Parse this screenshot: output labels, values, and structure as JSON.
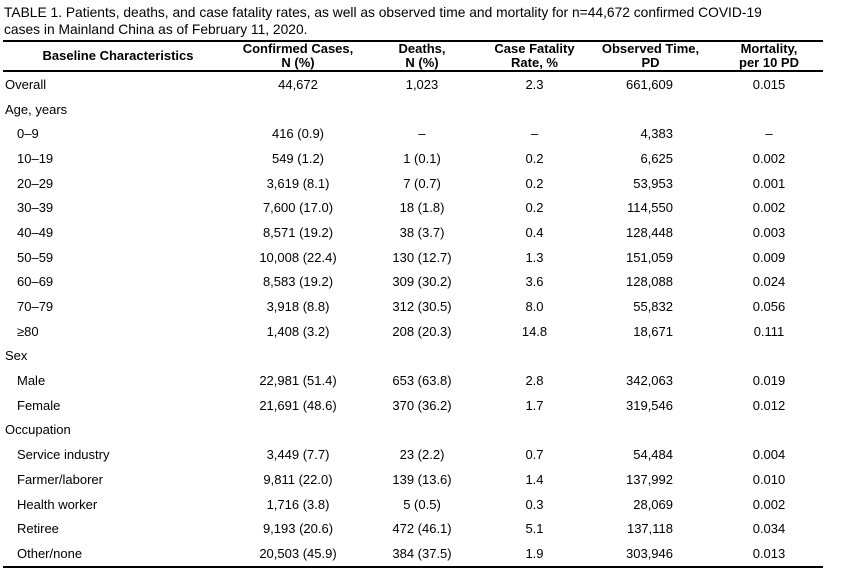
{
  "meta": {
    "text_color": "#000000",
    "background_color": "#ffffff",
    "rule_color": "#000000"
  },
  "title": {
    "line1": "TABLE 1. Patients, deaths, and case fatality rates, as well as observed time and mortality for n=44,672 confirmed COVID-19",
    "line2": "cases in Mainland China as of February 11, 2020."
  },
  "table": {
    "columns": [
      {
        "line1": "Baseline Characteristics",
        "line2": ""
      },
      {
        "line1": "Confirmed Cases,",
        "line2": "N (%)"
      },
      {
        "line1": "Deaths,",
        "line2": "N (%)"
      },
      {
        "line1": "Case Fatality",
        "line2": "Rate, %"
      },
      {
        "line1": "Observed Time,",
        "line2": "PD"
      },
      {
        "line1": "Mortality,",
        "line2": "per 10 PD"
      }
    ],
    "rows": [
      {
        "label": "Overall",
        "section": false,
        "indent": false,
        "confirmed": "44,672",
        "deaths": "1,023",
        "cfr": "2.3",
        "observed": "661,609",
        "mortality": "0.015"
      },
      {
        "label": "Age, years",
        "section": true,
        "indent": false
      },
      {
        "label": "0–9",
        "section": false,
        "indent": true,
        "confirmed": "416 (0.9)",
        "deaths": "–",
        "cfr": "–",
        "observed": "4,383",
        "mortality": "–"
      },
      {
        "label": "10–19",
        "section": false,
        "indent": true,
        "confirmed": "549 (1.2)",
        "deaths": "1 (0.1)",
        "cfr": "0.2",
        "observed": "6,625",
        "mortality": "0.002"
      },
      {
        "label": "20–29",
        "section": false,
        "indent": true,
        "confirmed": "3,619 (8.1)",
        "deaths": "7 (0.7)",
        "cfr": "0.2",
        "observed": "53,953",
        "mortality": "0.001"
      },
      {
        "label": "30–39",
        "section": false,
        "indent": true,
        "confirmed": "7,600 (17.0)",
        "deaths": "18 (1.8)",
        "cfr": "0.2",
        "observed": "114,550",
        "mortality": "0.002"
      },
      {
        "label": "40–49",
        "section": false,
        "indent": true,
        "confirmed": "8,571 (19.2)",
        "deaths": "38 (3.7)",
        "cfr": "0.4",
        "observed": "128,448",
        "mortality": "0.003"
      },
      {
        "label": "50–59",
        "section": false,
        "indent": true,
        "confirmed": "10,008 (22.4)",
        "deaths": "130 (12.7)",
        "cfr": "1.3",
        "observed": "151,059",
        "mortality": "0.009"
      },
      {
        "label": "60–69",
        "section": false,
        "indent": true,
        "confirmed": "8,583 (19.2)",
        "deaths": "309 (30.2)",
        "cfr": "3.6",
        "observed": "128,088",
        "mortality": "0.024"
      },
      {
        "label": "70–79",
        "section": false,
        "indent": true,
        "confirmed": "3,918 (8.8)",
        "deaths": "312 (30.5)",
        "cfr": "8.0",
        "observed": "55,832",
        "mortality": "0.056"
      },
      {
        "label": "≥80",
        "section": false,
        "indent": true,
        "confirmed": "1,408 (3.2)",
        "deaths": "208 (20.3)",
        "cfr": "14.8",
        "observed": "18,671",
        "mortality": "0.111"
      },
      {
        "label": "Sex",
        "section": true,
        "indent": false
      },
      {
        "label": "Male",
        "section": false,
        "indent": true,
        "confirmed": "22,981 (51.4)",
        "deaths": "653 (63.8)",
        "cfr": "2.8",
        "observed": "342,063",
        "mortality": "0.019"
      },
      {
        "label": "Female",
        "section": false,
        "indent": true,
        "confirmed": "21,691 (48.6)",
        "deaths": "370 (36.2)",
        "cfr": "1.7",
        "observed": "319,546",
        "mortality": "0.012"
      },
      {
        "label": "Occupation",
        "section": true,
        "indent": false
      },
      {
        "label": "Service industry",
        "section": false,
        "indent": true,
        "confirmed": "3,449 (7.7)",
        "deaths": "23 (2.2)",
        "cfr": "0.7",
        "observed": "54,484",
        "mortality": "0.004"
      },
      {
        "label": "Farmer/laborer",
        "section": false,
        "indent": true,
        "confirmed": "9,811 (22.0)",
        "deaths": "139 (13.6)",
        "cfr": "1.4",
        "observed": "137,992",
        "mortality": "0.010"
      },
      {
        "label": "Health worker",
        "section": false,
        "indent": true,
        "confirmed": "1,716 (3.8)",
        "deaths": "5 (0.5)",
        "cfr": "0.3",
        "observed": "28,069",
        "mortality": "0.002"
      },
      {
        "label": "Retiree",
        "section": false,
        "indent": true,
        "confirmed": "9,193 (20.6)",
        "deaths": "472 (46.1)",
        "cfr": "5.1",
        "observed": "137,118",
        "mortality": "0.034"
      },
      {
        "label": "Other/none",
        "section": false,
        "indent": true,
        "confirmed": "20,503 (45.9)",
        "deaths": "384 (37.5)",
        "cfr": "1.9",
        "observed": "303,946",
        "mortality": "0.013"
      }
    ]
  }
}
